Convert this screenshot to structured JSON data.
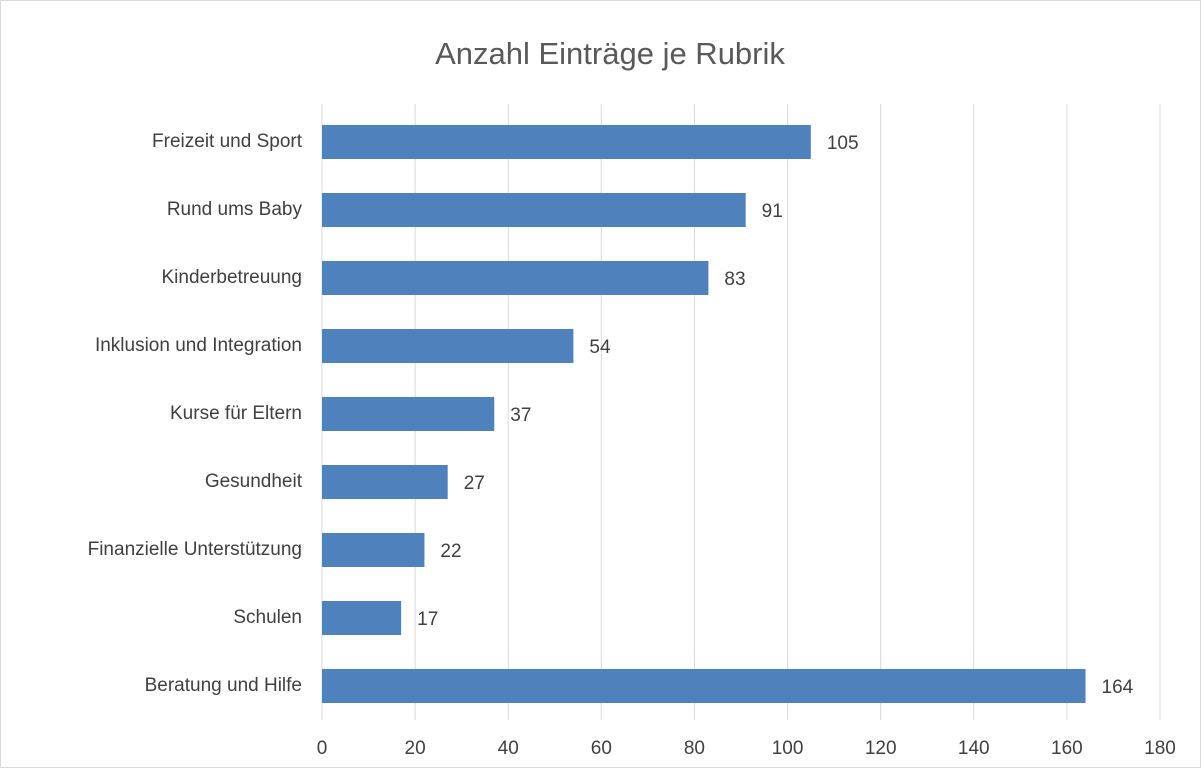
{
  "chart_data": {
    "type": "bar",
    "orientation": "horizontal",
    "title": "Anzahl Einträge je Rubrik",
    "categories": [
      "Freizeit und Sport",
      "Rund ums Baby",
      "Kinderbetreuung",
      "Inklusion und Integration",
      "Kurse für Eltern",
      "Gesundheit",
      "Finanzielle Unterstützung",
      "Schulen",
      "Beratung und Hilfe"
    ],
    "values": [
      105,
      91,
      83,
      54,
      37,
      27,
      22,
      17,
      164
    ],
    "color": "#4f81bd",
    "xlim": [
      0,
      180
    ],
    "xticks": [
      0,
      20,
      40,
      60,
      80,
      100,
      120,
      140,
      160,
      180
    ],
    "grid": true
  }
}
